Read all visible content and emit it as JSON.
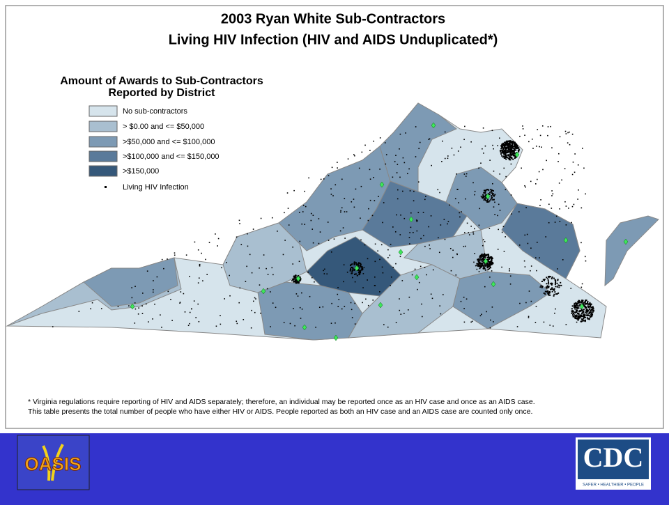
{
  "header": {
    "title": [
      "2003 Ryan White Sub-Contractors",
      "Living HIV Infection (HIV and AIDS Unduplicated*)"
    ]
  },
  "legend": {
    "title": [
      "Amount of Awards to Sub-Contractors",
      "Reported by District"
    ],
    "items": [
      "No sub-contractors",
      "> $0.00 and <= $50,000",
      ">$50,000 and <= $100,000",
      ">$100,000 and <= $150,000",
      ">$150,000",
      "Living HIV Infection"
    ]
  },
  "footnote": [
    "* Virginia regulations require reporting of HIV and AIDS separately; therefore, an individual may be reported once as an HIV case and once as an AIDS case.",
    "This table presents the total number of people who have either HIV or AIDS.  People reported as both an HIV case and an AIDS case are counted only once."
  ],
  "logos": {
    "left": "OASIS",
    "right": "CDC",
    "right_tagline": "SAFER • HEALTHIER • PEOPLE"
  }
}
